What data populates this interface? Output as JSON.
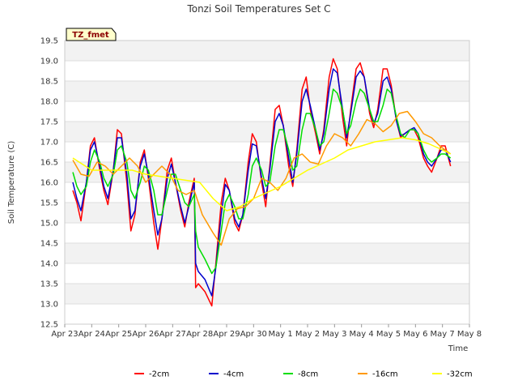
{
  "chart_data": {
    "type": "line",
    "title": "Tonzi Soil Temperatures Set C",
    "xlabel": "Time",
    "ylabel": "Soil Temperature (C)",
    "site_label": "TZ_fmet",
    "ylim": [
      12.5,
      19.5
    ],
    "yticks": [
      12.5,
      13.0,
      13.5,
      14.0,
      14.5,
      15.0,
      15.5,
      16.0,
      16.5,
      17.0,
      17.5,
      18.0,
      18.5,
      19.0,
      19.5
    ],
    "xlim": [
      0,
      15
    ],
    "xticks": [
      {
        "v": 0,
        "label": "Apr 23"
      },
      {
        "v": 1,
        "label": "Apr 24"
      },
      {
        "v": 2,
        "label": "Apr 25"
      },
      {
        "v": 3,
        "label": "Apr 26"
      },
      {
        "v": 4,
        "label": "Apr 27"
      },
      {
        "v": 5,
        "label": "Apr 28"
      },
      {
        "v": 6,
        "label": "Apr 29"
      },
      {
        "v": 7,
        "label": "Apr 30"
      },
      {
        "v": 8,
        "label": "May 1"
      },
      {
        "v": 9,
        "label": "May 2"
      },
      {
        "v": 10,
        "label": "May 3"
      },
      {
        "v": 11,
        "label": "May 4"
      },
      {
        "v": 12,
        "label": "May 5"
      },
      {
        "v": 13,
        "label": "May 6"
      },
      {
        "v": 14,
        "label": "May 7"
      },
      {
        "v": 15,
        "label": "May 8"
      }
    ],
    "grid": true,
    "legend_position": "bottom",
    "series": [
      {
        "name": "-2cm",
        "color": "#ff0000",
        "x": [
          0.3,
          0.45,
          0.6,
          0.8,
          0.95,
          1.1,
          1.3,
          1.45,
          1.6,
          1.8,
          1.95,
          2.1,
          2.3,
          2.45,
          2.6,
          2.8,
          2.95,
          3.1,
          3.3,
          3.45,
          3.6,
          3.8,
          3.95,
          4.1,
          4.3,
          4.45,
          4.6,
          4.8,
          4.85,
          4.95,
          5.2,
          5.45,
          5.6,
          5.8,
          5.95,
          6.1,
          6.3,
          6.45,
          6.6,
          6.8,
          6.95,
          7.1,
          7.3,
          7.45,
          7.6,
          7.8,
          7.95,
          8.1,
          8.3,
          8.45,
          8.6,
          8.8,
          8.95,
          9.1,
          9.3,
          9.45,
          9.6,
          9.8,
          9.95,
          10.1,
          10.3,
          10.45,
          10.6,
          10.8,
          10.95,
          11.1,
          11.3,
          11.45,
          11.6,
          11.8,
          11.95,
          12.1,
          12.3,
          12.45,
          12.6,
          12.8,
          12.95,
          13.1,
          13.3,
          13.45,
          13.6,
          13.8,
          13.95,
          14.1,
          14.3
        ],
        "y": [
          15.8,
          15.5,
          15.05,
          16.0,
          16.9,
          17.1,
          16.3,
          15.8,
          15.45,
          16.3,
          17.3,
          17.2,
          16.0,
          14.8,
          15.2,
          16.5,
          16.8,
          16.1,
          15.0,
          14.35,
          15.1,
          16.3,
          16.6,
          16.0,
          15.3,
          14.9,
          15.5,
          16.1,
          13.4,
          13.5,
          13.3,
          12.95,
          14.0,
          15.5,
          16.1,
          15.8,
          15.0,
          14.8,
          15.2,
          16.5,
          17.2,
          17.0,
          16.0,
          15.4,
          16.4,
          17.8,
          17.9,
          17.4,
          16.4,
          15.9,
          16.8,
          18.3,
          18.6,
          17.8,
          17.2,
          16.7,
          17.3,
          18.6,
          19.05,
          18.8,
          17.6,
          16.9,
          17.8,
          18.8,
          18.95,
          18.6,
          17.7,
          17.35,
          17.8,
          18.8,
          18.8,
          18.4,
          17.5,
          17.1,
          17.2,
          17.3,
          17.3,
          17.1,
          16.6,
          16.4,
          16.25,
          16.6,
          16.9,
          16.9,
          16.4
        ]
      },
      {
        "name": "-4cm",
        "color": "#0000cc",
        "x": [
          0.3,
          0.45,
          0.6,
          0.8,
          0.95,
          1.1,
          1.3,
          1.45,
          1.6,
          1.8,
          1.95,
          2.1,
          2.3,
          2.45,
          2.6,
          2.8,
          2.95,
          3.1,
          3.3,
          3.45,
          3.6,
          3.8,
          3.95,
          4.1,
          4.3,
          4.45,
          4.6,
          4.8,
          4.85,
          4.95,
          5.2,
          5.45,
          5.6,
          5.8,
          5.95,
          6.1,
          6.3,
          6.45,
          6.6,
          6.8,
          6.95,
          7.1,
          7.3,
          7.45,
          7.6,
          7.8,
          7.95,
          8.1,
          8.3,
          8.45,
          8.6,
          8.8,
          8.95,
          9.1,
          9.3,
          9.45,
          9.6,
          9.8,
          9.95,
          10.1,
          10.3,
          10.45,
          10.6,
          10.8,
          10.95,
          11.1,
          11.3,
          11.45,
          11.6,
          11.8,
          11.95,
          12.1,
          12.3,
          12.45,
          12.6,
          12.8,
          12.95,
          13.1,
          13.3,
          13.45,
          13.6,
          13.8,
          13.95,
          14.1,
          14.3
        ],
        "y": [
          16.0,
          15.6,
          15.3,
          16.0,
          16.8,
          17.0,
          16.4,
          15.9,
          15.6,
          16.3,
          17.1,
          17.1,
          16.2,
          15.1,
          15.3,
          16.4,
          16.7,
          16.2,
          15.3,
          14.7,
          15.1,
          16.1,
          16.45,
          16.0,
          15.4,
          15.0,
          15.4,
          16.0,
          14.0,
          13.8,
          13.6,
          13.2,
          13.9,
          15.2,
          15.95,
          15.8,
          15.1,
          14.9,
          15.2,
          16.3,
          16.95,
          16.9,
          16.1,
          15.6,
          16.3,
          17.5,
          17.7,
          17.4,
          16.6,
          16.0,
          16.7,
          18.0,
          18.3,
          17.9,
          17.3,
          16.8,
          17.2,
          18.3,
          18.8,
          18.7,
          17.8,
          17.1,
          17.7,
          18.6,
          18.75,
          18.6,
          17.8,
          17.45,
          17.7,
          18.5,
          18.6,
          18.3,
          17.5,
          17.15,
          17.2,
          17.3,
          17.35,
          17.2,
          16.7,
          16.5,
          16.4,
          16.6,
          16.8,
          16.8,
          16.5
        ]
      },
      {
        "name": "-8cm",
        "color": "#00dd00",
        "x": [
          0.3,
          0.45,
          0.6,
          0.8,
          0.95,
          1.1,
          1.3,
          1.45,
          1.6,
          1.8,
          1.95,
          2.1,
          2.3,
          2.45,
          2.6,
          2.8,
          2.95,
          3.1,
          3.3,
          3.45,
          3.6,
          3.8,
          3.95,
          4.1,
          4.3,
          4.45,
          4.6,
          4.8,
          4.85,
          4.95,
          5.2,
          5.45,
          5.6,
          5.8,
          5.95,
          6.1,
          6.3,
          6.45,
          6.6,
          6.8,
          6.95,
          7.1,
          7.3,
          7.45,
          7.6,
          7.8,
          7.95,
          8.1,
          8.3,
          8.45,
          8.6,
          8.8,
          8.95,
          9.1,
          9.3,
          9.45,
          9.6,
          9.8,
          9.95,
          10.1,
          10.3,
          10.45,
          10.6,
          10.8,
          10.95,
          11.1,
          11.3,
          11.45,
          11.6,
          11.8,
          11.95,
          12.1,
          12.3,
          12.45,
          12.6,
          12.8,
          12.95,
          13.1,
          13.3,
          13.45,
          13.6,
          13.8,
          13.95,
          14.1,
          14.3
        ],
        "y": [
          16.25,
          15.9,
          15.7,
          15.9,
          16.5,
          16.8,
          16.5,
          16.1,
          15.9,
          16.2,
          16.8,
          16.9,
          16.5,
          15.8,
          15.6,
          16.0,
          16.4,
          16.3,
          15.8,
          15.2,
          15.2,
          15.8,
          16.2,
          16.2,
          15.8,
          15.5,
          15.4,
          15.7,
          14.8,
          14.4,
          14.1,
          13.75,
          13.9,
          14.8,
          15.5,
          15.7,
          15.4,
          15.1,
          15.1,
          15.7,
          16.4,
          16.6,
          16.3,
          15.9,
          16.0,
          16.9,
          17.3,
          17.3,
          16.8,
          16.3,
          16.4,
          17.3,
          17.7,
          17.7,
          17.3,
          16.9,
          17.0,
          17.7,
          18.3,
          18.2,
          17.8,
          17.2,
          17.4,
          18.0,
          18.3,
          18.2,
          17.8,
          17.5,
          17.5,
          17.9,
          18.3,
          18.2,
          17.6,
          17.2,
          17.1,
          17.3,
          17.3,
          17.2,
          16.8,
          16.6,
          16.5,
          16.6,
          16.7,
          16.7,
          16.6
        ]
      },
      {
        "name": "-16cm",
        "color": "#ff9900",
        "x": [
          0.3,
          0.6,
          0.9,
          1.2,
          1.5,
          1.8,
          2.1,
          2.4,
          2.7,
          3.0,
          3.3,
          3.6,
          3.9,
          4.2,
          4.5,
          4.8,
          5.1,
          5.5,
          5.8,
          6.1,
          6.4,
          6.7,
          7.0,
          7.3,
          7.6,
          7.9,
          8.2,
          8.5,
          8.8,
          9.1,
          9.4,
          9.7,
          10.0,
          10.3,
          10.6,
          10.9,
          11.2,
          11.5,
          11.8,
          12.1,
          12.4,
          12.7,
          13.0,
          13.3,
          13.6,
          13.9,
          14.2,
          14.3
        ],
        "y": [
          16.55,
          16.2,
          16.15,
          16.5,
          16.4,
          16.2,
          16.4,
          16.6,
          16.4,
          16.0,
          16.2,
          16.4,
          16.2,
          15.8,
          15.7,
          15.8,
          15.2,
          14.75,
          14.45,
          15.1,
          15.35,
          15.4,
          15.6,
          16.1,
          16.0,
          15.8,
          16.1,
          16.6,
          16.7,
          16.5,
          16.45,
          16.9,
          17.2,
          17.1,
          16.9,
          17.2,
          17.55,
          17.45,
          17.25,
          17.4,
          17.7,
          17.75,
          17.5,
          17.2,
          17.1,
          16.9,
          16.75,
          16.7
        ]
      },
      {
        "name": "-32cm",
        "color": "#ffff00",
        "x": [
          0.3,
          1.0,
          1.5,
          2.0,
          2.5,
          3.0,
          3.5,
          4.0,
          4.5,
          5.0,
          5.5,
          6.0,
          6.5,
          7.0,
          7.5,
          8.0,
          8.5,
          9.0,
          9.5,
          10.0,
          10.5,
          11.0,
          11.5,
          12.0,
          12.5,
          13.0,
          13.5,
          14.0,
          14.3
        ],
        "y": [
          16.6,
          16.3,
          16.3,
          16.3,
          16.3,
          16.2,
          16.15,
          16.1,
          16.05,
          16.0,
          15.6,
          15.3,
          15.4,
          15.6,
          15.75,
          15.9,
          16.1,
          16.3,
          16.45,
          16.6,
          16.8,
          16.9,
          17.0,
          17.05,
          17.1,
          17.05,
          16.95,
          16.8,
          16.7
        ]
      }
    ]
  }
}
